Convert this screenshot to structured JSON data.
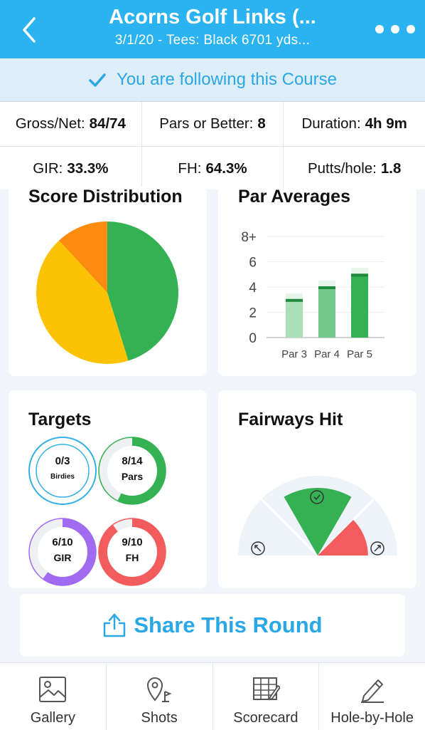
{
  "header": {
    "title": "Acorns Golf Links (...",
    "subtitle": "3/1/20 - Tees: Black 6701 yds...",
    "back_icon": "chevron-left-icon",
    "more_icon": "more-dots-icon"
  },
  "follow_banner": {
    "text": "You are following this Course",
    "icon": "checkmark-icon"
  },
  "stats": {
    "row1": [
      {
        "label": "Gross/Net:",
        "value": "84/74"
      },
      {
        "label": "Pars or Better:",
        "value": "8"
      },
      {
        "label": "Duration:",
        "value": "4h 9m"
      }
    ],
    "row2": [
      {
        "label": "GIR:",
        "value": "33.3%"
      },
      {
        "label": "FH:",
        "value": "64.3%"
      },
      {
        "label": "Putts/hole:",
        "value": "1.8"
      }
    ]
  },
  "score_distribution": {
    "title": "Score Distribution",
    "slices": [
      {
        "fraction": 0.4524,
        "color": "#34b152"
      },
      {
        "fraction": 0.4286,
        "color": "#fcc304"
      },
      {
        "fraction": 0.119,
        "color": "#fb8c0f"
      }
    ]
  },
  "par_averages": {
    "title": "Par Averages",
    "chart_data": {
      "type": "bar",
      "categories": [
        "Par 3",
        "Par 4",
        "Par 5"
      ],
      "values": [
        3.0,
        4.0,
        5.0
      ],
      "ylim": [
        0,
        8
      ],
      "yticks": [
        "0",
        "2",
        "4",
        "6",
        "8+"
      ],
      "colors": [
        "#a8dfb7",
        "#73c98e",
        "#34b152"
      ],
      "grid": true
    }
  },
  "targets": {
    "title": "Targets",
    "items": [
      {
        "value": "0/3",
        "label": "Birdies",
        "progress": 0.0,
        "color": "#36b0e8"
      },
      {
        "value": "8/14",
        "label": "Pars",
        "progress": 0.5714,
        "color": "#34b152"
      },
      {
        "value": "6/10",
        "label": "GIR",
        "progress": 0.6,
        "color": "#a06bf0"
      },
      {
        "value": "9/10",
        "label": "FH",
        "progress": 0.9,
        "color": "#f25c5c"
      }
    ]
  },
  "fairways_hit": {
    "title": "Fairways Hit",
    "chart_data": {
      "type": "pie",
      "categories": [
        "Left",
        "Hit",
        "Right"
      ],
      "values": [
        0.0,
        64.3,
        35.7
      ],
      "colors": [
        "#eef3fa",
        "#34b152",
        "#f25c5c"
      ]
    }
  },
  "share": {
    "label": "Share This Round",
    "icon": "share-icon"
  },
  "tabbar": {
    "items": [
      {
        "label": "Gallery",
        "icon": "gallery-icon"
      },
      {
        "label": "Shots",
        "icon": "map-pin-icon"
      },
      {
        "label": "Scorecard",
        "icon": "scorecard-icon"
      },
      {
        "label": "Hole-by-Hole",
        "icon": "pencil-icon"
      }
    ]
  }
}
